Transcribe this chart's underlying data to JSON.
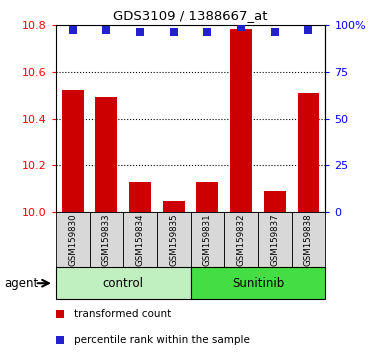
{
  "title": "GDS3109 / 1388667_at",
  "samples": [
    "GSM159830",
    "GSM159833",
    "GSM159834",
    "GSM159835",
    "GSM159831",
    "GSM159832",
    "GSM159837",
    "GSM159838"
  ],
  "bar_values": [
    10.52,
    10.49,
    10.13,
    10.05,
    10.13,
    10.78,
    10.09,
    10.51
  ],
  "percentile_values": [
    97,
    97,
    96,
    96,
    96,
    99,
    96,
    97
  ],
  "ymin": 10.0,
  "ymax": 10.8,
  "yticks_left": [
    10.0,
    10.2,
    10.4,
    10.6,
    10.8
  ],
  "yticks_right": [
    0,
    25,
    50,
    75,
    100
  ],
  "bar_color": "#cc0000",
  "dot_color": "#2222cc",
  "bg_color": "#d8d8d8",
  "control_color": "#c0f0c0",
  "sunitinib_color": "#44dd44",
  "legend_bar": "transformed count",
  "legend_dot": "percentile rank within the sample",
  "dot_size": 40,
  "n_control": 4,
  "n_sunitinib": 4
}
